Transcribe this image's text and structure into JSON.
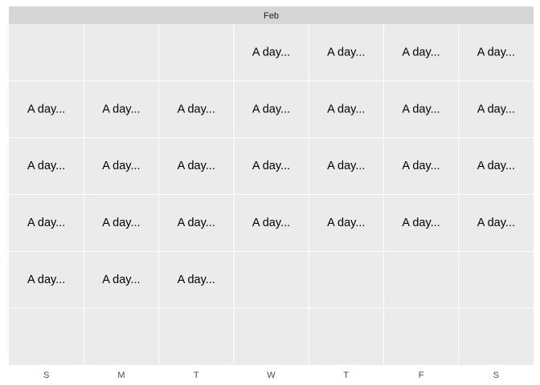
{
  "chart_data": {
    "type": "table",
    "title": "",
    "facet_label": "Feb",
    "xlabel": "",
    "ylabel": "",
    "weekdays": [
      "S",
      "M",
      "T",
      "W",
      "T",
      "F",
      "S"
    ],
    "weeks": 6,
    "cells": [
      {
        "week": 1,
        "weekday": 3,
        "label": "A day..."
      },
      {
        "week": 1,
        "weekday": 4,
        "label": "A day..."
      },
      {
        "week": 1,
        "weekday": 5,
        "label": "A day..."
      },
      {
        "week": 1,
        "weekday": 6,
        "label": "A day..."
      },
      {
        "week": 2,
        "weekday": 0,
        "label": "A day..."
      },
      {
        "week": 2,
        "weekday": 1,
        "label": "A day..."
      },
      {
        "week": 2,
        "weekday": 2,
        "label": "A day..."
      },
      {
        "week": 2,
        "weekday": 3,
        "label": "A day..."
      },
      {
        "week": 2,
        "weekday": 4,
        "label": "A day..."
      },
      {
        "week": 2,
        "weekday": 5,
        "label": "A day..."
      },
      {
        "week": 2,
        "weekday": 6,
        "label": "A day..."
      },
      {
        "week": 3,
        "weekday": 0,
        "label": "A day..."
      },
      {
        "week": 3,
        "weekday": 1,
        "label": "A day..."
      },
      {
        "week": 3,
        "weekday": 2,
        "label": "A day..."
      },
      {
        "week": 3,
        "weekday": 3,
        "label": "A day..."
      },
      {
        "week": 3,
        "weekday": 4,
        "label": "A day..."
      },
      {
        "week": 3,
        "weekday": 5,
        "label": "A day..."
      },
      {
        "week": 3,
        "weekday": 6,
        "label": "A day..."
      },
      {
        "week": 4,
        "weekday": 0,
        "label": "A day..."
      },
      {
        "week": 4,
        "weekday": 1,
        "label": "A day..."
      },
      {
        "week": 4,
        "weekday": 2,
        "label": "A day..."
      },
      {
        "week": 4,
        "weekday": 3,
        "label": "A day..."
      },
      {
        "week": 4,
        "weekday": 4,
        "label": "A day..."
      },
      {
        "week": 4,
        "weekday": 5,
        "label": "A day..."
      },
      {
        "week": 4,
        "weekday": 6,
        "label": "A day..."
      },
      {
        "week": 5,
        "weekday": 0,
        "label": "A day..."
      },
      {
        "week": 5,
        "weekday": 1,
        "label": "A day..."
      },
      {
        "week": 5,
        "weekday": 2,
        "label": "A day..."
      }
    ],
    "grid": true,
    "legend": "none"
  }
}
